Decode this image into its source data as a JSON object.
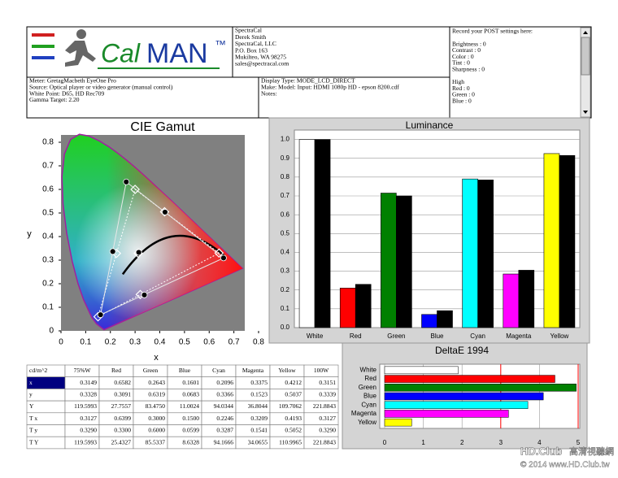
{
  "header": {
    "logo": {
      "cal": "Cal",
      "man": "MAN",
      "tm": "™"
    },
    "contact": [
      "SpectraCal",
      "Derek Smith",
      "SpectraCal, LLC",
      "P.O. Box 163",
      "Mukilteo, WA 98275",
      "sales@spectracal.com"
    ],
    "settings": [
      "Record your POST settings here:",
      "Brightness : 0",
      "Contrast : 0",
      "Color : 0",
      "Tint : 0",
      "Sharpness : 0",
      "High",
      "Red : 0",
      "Green : 0",
      "Blue : 0"
    ],
    "meter": [
      "Meter: GretagMacbeth EyeOne Pro",
      "Source: Optical player or video generator (manual control)",
      "White Point: D65, HD Rec709",
      "Gamma Target: 2.20"
    ],
    "display": [
      "Display Type: MODE_LCD_DIRECT",
      "Make: Model: Input: HDMI 1080p HD    -    epson 8200.cdf",
      "Notes:"
    ]
  },
  "chart_data": [
    {
      "type": "scatter",
      "title": "CIE Gamut",
      "x_label": "x",
      "y_label": "y",
      "xlim": [
        0,
        0.8
      ],
      "ylim": [
        0,
        0.8
      ],
      "xticks": [
        0,
        0.1,
        0.2,
        0.3,
        0.4,
        0.5,
        0.6,
        0.7,
        0.8
      ],
      "yticks": [
        0,
        0.1,
        0.2,
        0.3,
        0.4,
        0.5,
        0.6,
        0.7,
        0.8
      ],
      "series": [
        {
          "marker": "diamond",
          "color": "#ffffff",
          "line": "dotted",
          "x": [
            0.6399,
            0.3,
            0.15,
            0.2246,
            0.3209,
            0.4193,
            0.3127
          ],
          "y": [
            0.33,
            0.6,
            0.0599,
            0.3287,
            0.1541,
            0.5052,
            0.329
          ]
        },
        {
          "marker": "dot",
          "color": "#000000",
          "line": "solid",
          "x": [
            0.6582,
            0.2643,
            0.1601,
            0.2096,
            0.3375,
            0.4212,
            0.3149
          ],
          "y": [
            0.3091,
            0.6319,
            0.0683,
            0.3366,
            0.1523,
            0.5037,
            0.3328
          ]
        }
      ]
    },
    {
      "type": "bar",
      "title": "Luminance",
      "categories": [
        "White",
        "Red",
        "Green",
        "Blue",
        "Cyan",
        "Magenta",
        "Yellow"
      ],
      "series": [
        {
          "colors": [
            "#ffffff",
            "#ff0000",
            "#008000",
            "#0000ff",
            "#00ffff",
            "#ff00ff",
            "#ffff00"
          ],
          "values": [
            1.0,
            0.21,
            0.715,
            0.07,
            0.79,
            0.285,
            0.925
          ]
        },
        {
          "color": "#000000",
          "values": [
            1.0,
            0.23,
            0.7,
            0.09,
            0.785,
            0.305,
            0.915
          ]
        }
      ],
      "ylim": [
        0,
        1.05
      ],
      "yticks": [
        {
          "value": 0,
          "label": "0.0"
        },
        0.1,
        0.2,
        0.3,
        0.4,
        0.5,
        0.6,
        0.7,
        0.8,
        0.9,
        {
          "value": 1,
          "label": "1.0"
        }
      ],
      "grid": true
    },
    {
      "type": "hbar",
      "title": "DeltaE 1994",
      "categories": [
        "White",
        "Red",
        "Green",
        "Blue",
        "Cyan",
        "Magenta",
        "Yellow"
      ],
      "colors": [
        "#ffffff",
        "#ff0000",
        "#008000",
        "#0000ff",
        "#00ffff",
        "#ff00ff",
        "#ffff00"
      ],
      "values": [
        1.9,
        4.4,
        4.95,
        4.1,
        3.7,
        3.2,
        0.7
      ],
      "xlim": [
        0,
        5
      ],
      "xticks": [
        0,
        1,
        2,
        3,
        4,
        5
      ],
      "reference_lines": [
        3,
        5
      ],
      "reference_color": "#ff0000",
      "grid": true
    }
  ],
  "table": {
    "header": [
      "cd/m^2",
      "75%W",
      "Red",
      "Green",
      "Blue",
      "Cyan",
      "Magenta",
      "Yellow",
      "100W"
    ],
    "rows": [
      [
        "x",
        "0.3149",
        "0.6582",
        "0.2643",
        "0.1601",
        "0.2096",
        "0.3375",
        "0.4212",
        "0.3151"
      ],
      [
        "y",
        "0.3328",
        "0.3091",
        "0.6319",
        "0.0683",
        "0.3366",
        "0.1523",
        "0.5037",
        "0.3339"
      ],
      [
        "Y",
        "119.5993",
        "27.7557",
        "83.4750",
        "11.0024",
        "94.0344",
        "36.8044",
        "109.7062",
        "221.8843"
      ],
      [
        "T x",
        "0.3127",
        "0.6399",
        "0.3000",
        "0.1500",
        "0.2246",
        "0.3209",
        "0.4193",
        "0.3127"
      ],
      [
        "T y",
        "0.3290",
        "0.3300",
        "0.6000",
        "0.0599",
        "0.3287",
        "0.1541",
        "0.5052",
        "0.3290"
      ],
      [
        "T Y",
        "119.5993",
        "25.4327",
        "85.5337",
        "8.6328",
        "94.1666",
        "34.0655",
        "110.9965",
        "221.8843"
      ]
    ]
  },
  "watermark": {
    "brand": "HD.Club",
    "site_name": "高清視聽網",
    "copyright": "© 2014 www.HD.Club.tw"
  }
}
